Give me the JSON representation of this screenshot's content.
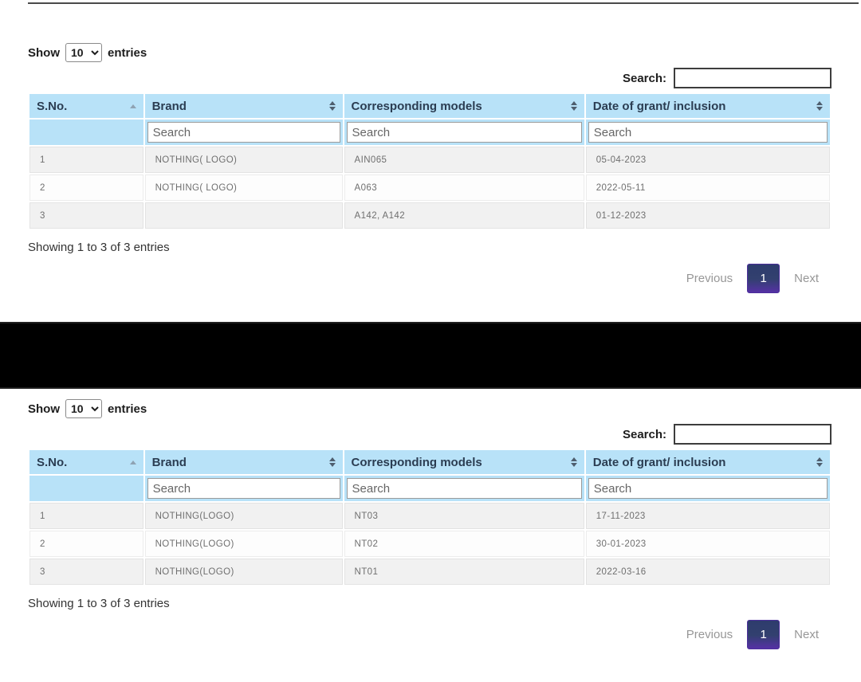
{
  "theme": {
    "header_bg": "#b8e2f8",
    "header_text": "#2b3d52",
    "stripe_bg": "#f1f1f1",
    "active_page_gradient_top": "#2e3c6d",
    "active_page_gradient_bottom": "#5531a5",
    "disabled_page_text": "#979797",
    "cell_text": "#6f6f6f"
  },
  "tables": [
    {
      "length": {
        "show": "Show",
        "value": "10",
        "entries": "entries"
      },
      "search": {
        "label": "Search:",
        "value": ""
      },
      "columns": [
        {
          "label": "S.No.",
          "sort": "asc"
        },
        {
          "label": "Brand",
          "sort": "both"
        },
        {
          "label": "Corresponding models",
          "sort": "both"
        },
        {
          "label": "Date of grant/ inclusion",
          "sort": "both"
        }
      ],
      "column_search_placeholder": "Search",
      "rows": [
        [
          "1",
          "NOTHING( LOGO)",
          "AIN065",
          "05-04-2023"
        ],
        [
          "2",
          "NOTHING( LOGO)",
          "A063",
          "2022-05-11"
        ],
        [
          "3",
          "",
          "A142, A142",
          "01-12-2023"
        ]
      ],
      "info": "Showing 1 to 3 of 3 entries",
      "pagination": {
        "previous": "Previous",
        "page": "1",
        "next": "Next"
      }
    },
    {
      "length": {
        "show": "Show",
        "value": "10",
        "entries": "entries"
      },
      "search": {
        "label": "Search:",
        "value": ""
      },
      "columns": [
        {
          "label": "S.No.",
          "sort": "asc"
        },
        {
          "label": "Brand",
          "sort": "both"
        },
        {
          "label": "Corresponding models",
          "sort": "both"
        },
        {
          "label": "Date of grant/ inclusion",
          "sort": "both"
        }
      ],
      "column_search_placeholder": "Search",
      "rows": [
        [
          "1",
          "NOTHING(LOGO)",
          "NT03",
          "17-11-2023"
        ],
        [
          "2",
          "NOTHING(LOGO)",
          "NT02",
          "30-01-2023"
        ],
        [
          "3",
          "NOTHING(LOGO)",
          "NT01",
          "2022-03-16"
        ]
      ],
      "info": "Showing 1 to 3 of 3 entries",
      "pagination": {
        "previous": "Previous",
        "page": "1",
        "next": "Next"
      }
    }
  ]
}
